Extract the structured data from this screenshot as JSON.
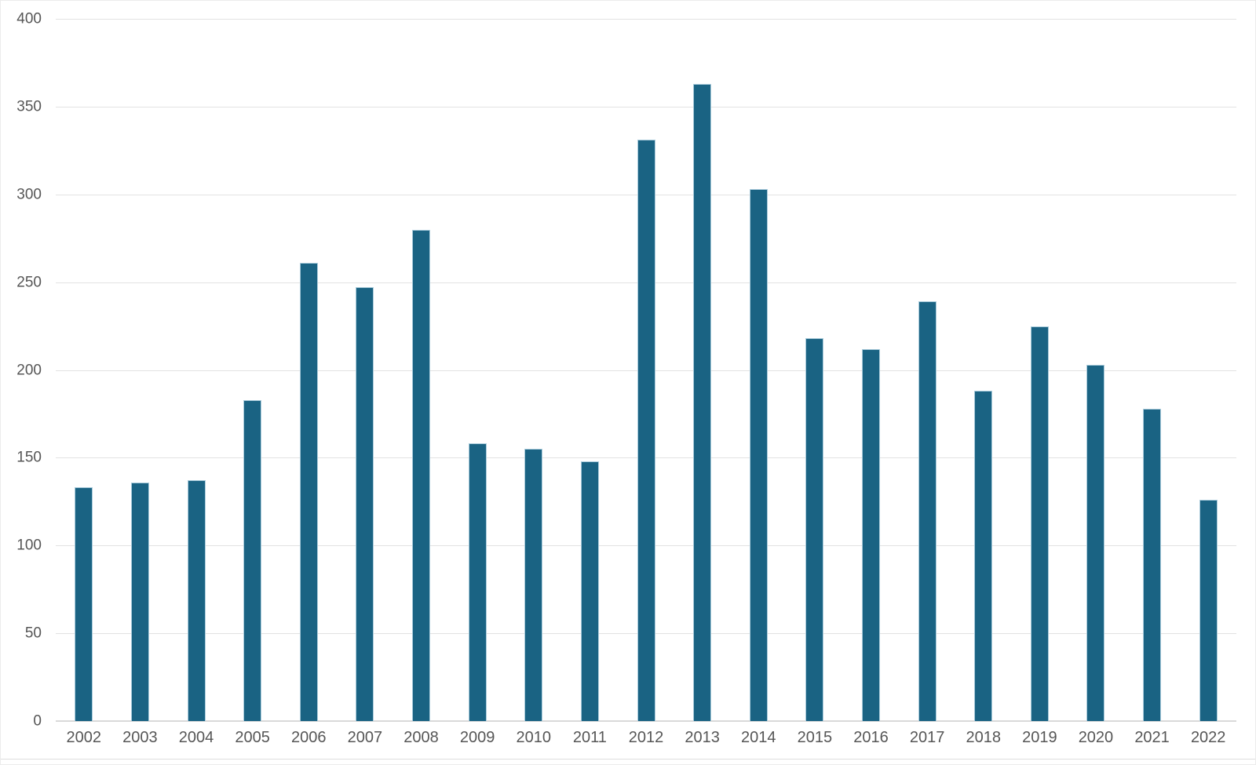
{
  "chart_data": {
    "type": "bar",
    "title": "",
    "xlabel": "",
    "ylabel": "",
    "categories": [
      "2002",
      "2003",
      "2004",
      "2005",
      "2006",
      "2007",
      "2008",
      "2009",
      "2010",
      "2011",
      "2012",
      "2013",
      "2014",
      "2015",
      "2016",
      "2017",
      "2018",
      "2019",
      "2020",
      "2021",
      "2022"
    ],
    "values": [
      133,
      136,
      137,
      183,
      261,
      247,
      280,
      158,
      155,
      148,
      331,
      363,
      303,
      218,
      212,
      239,
      188,
      225,
      203,
      178,
      126
    ],
    "ylim": [
      0,
      400
    ],
    "ytick_step": 50,
    "y_tick_labels": [
      "0",
      "50",
      "100",
      "150",
      "200",
      "250",
      "300",
      "350",
      "400"
    ],
    "grid": "horizontal",
    "legend_position": "none",
    "colors": {
      "bar_fill": "#1a6383",
      "bar_edge": "#a9cbdb",
      "gridline": "#e2e2e2",
      "axis_line": "#d9d9d9",
      "tick_label": "#565656",
      "background": "#ffffff"
    }
  }
}
